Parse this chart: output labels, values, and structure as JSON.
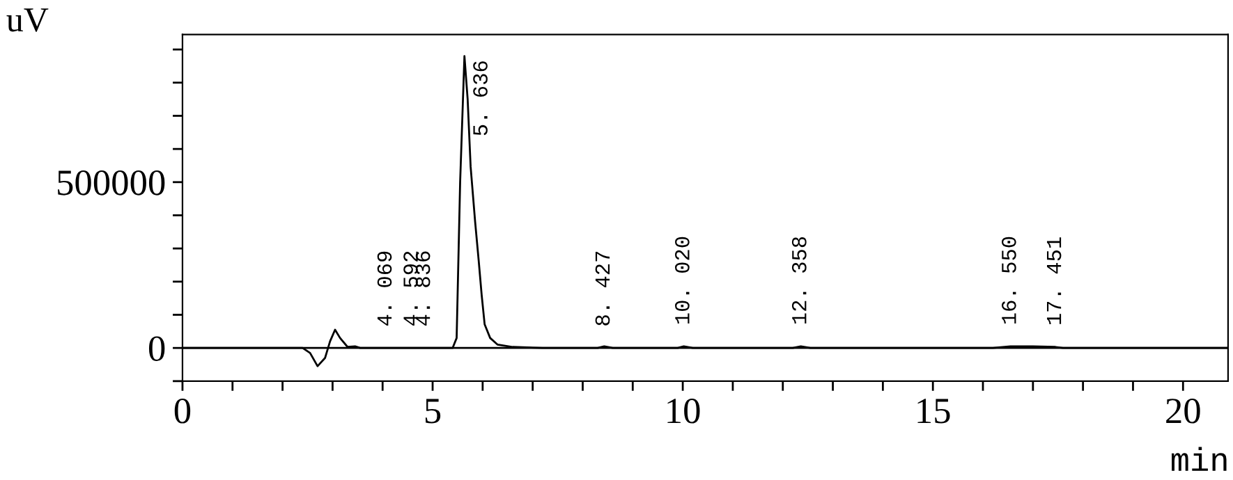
{
  "chart_data": {
    "type": "line",
    "xlabel": "min",
    "ylabel": "uV",
    "x": [
      0,
      2.4,
      2.55,
      2.7,
      2.85,
      2.95,
      3.05,
      3.15,
      3.3,
      3.45,
      3.55,
      3.7,
      4.5,
      5.4,
      5.48,
      5.55,
      5.636,
      5.7,
      5.76,
      5.85,
      5.92,
      5.98,
      6.04,
      6.15,
      6.3,
      6.6,
      7.2,
      8.3,
      8.43,
      8.6,
      9.9,
      10.02,
      10.2,
      12.2,
      12.36,
      12.55,
      16.2,
      16.55,
      17.0,
      17.45,
      17.6,
      20.9
    ],
    "series": [
      {
        "color": "#000000",
        "values": [
          0,
          0,
          -15000,
          -55000,
          -30000,
          20000,
          55000,
          30000,
          3000,
          5000,
          0,
          0,
          0,
          0,
          30000,
          500000,
          880000,
          750000,
          546000,
          380000,
          265000,
          160000,
          71000,
          30000,
          10000,
          3000,
          0,
          0,
          5000,
          0,
          0,
          5000,
          0,
          0,
          5000,
          0,
          0,
          5000,
          5000,
          3000,
          0,
          0
        ]
      }
    ],
    "xlim": [
      0,
      20.9
    ],
    "ylim": [
      -100000,
      945000
    ],
    "xticks": [
      0,
      {
        "value": 1,
        "label": null
      },
      {
        "value": 2,
        "label": null
      },
      {
        "value": 3,
        "label": null
      },
      {
        "value": 4,
        "label": null
      },
      5,
      {
        "value": 6,
        "label": null
      },
      {
        "value": 7,
        "label": null
      },
      {
        "value": 8,
        "label": null
      },
      {
        "value": 9,
        "label": null
      },
      10,
      {
        "value": 11,
        "label": null
      },
      {
        "value": 12,
        "label": null
      },
      {
        "value": 13,
        "label": null
      },
      {
        "value": 14,
        "label": null
      },
      15,
      {
        "value": 16,
        "label": null
      },
      {
        "value": 17,
        "label": null
      },
      {
        "value": 18,
        "label": null
      },
      {
        "value": 19,
        "label": null
      },
      20
    ],
    "yticks": [
      {
        "value": -100000,
        "label": null
      },
      0,
      {
        "value": 100000,
        "label": null
      },
      {
        "value": 200000,
        "label": null
      },
      {
        "value": 300000,
        "label": null
      },
      {
        "value": 400000,
        "label": null
      },
      500000,
      {
        "value": 600000,
        "label": null
      },
      {
        "value": 700000,
        "label": null
      },
      {
        "value": 800000,
        "label": null
      },
      {
        "value": 900000,
        "label": null
      }
    ],
    "ref_lines": [
      {
        "axis": "y",
        "value": 0,
        "color": "#000000"
      }
    ],
    "annotations": [
      {
        "text": "4. 069",
        "x": 4.069,
        "y": 0
      },
      {
        "text": "4. 592",
        "x": 4.592,
        "y": 0
      },
      {
        "text": "4. 836",
        "x": 4.836,
        "y": 0
      },
      {
        "text": "5. 636",
        "x": 5.636,
        "y": 880000
      },
      {
        "text": "8. 427",
        "x": 8.427,
        "y": 0
      },
      {
        "text": "10. 020",
        "x": 10.02,
        "y": 5000
      },
      {
        "text": "12. 358",
        "x": 12.358,
        "y": 5000
      },
      {
        "text": "16. 550",
        "x": 16.55,
        "y": 5000
      },
      {
        "text": "17. 451",
        "x": 17.451,
        "y": 3000
      }
    ],
    "grid": false,
    "legend": false,
    "marker": "none",
    "line_style": "solid"
  }
}
